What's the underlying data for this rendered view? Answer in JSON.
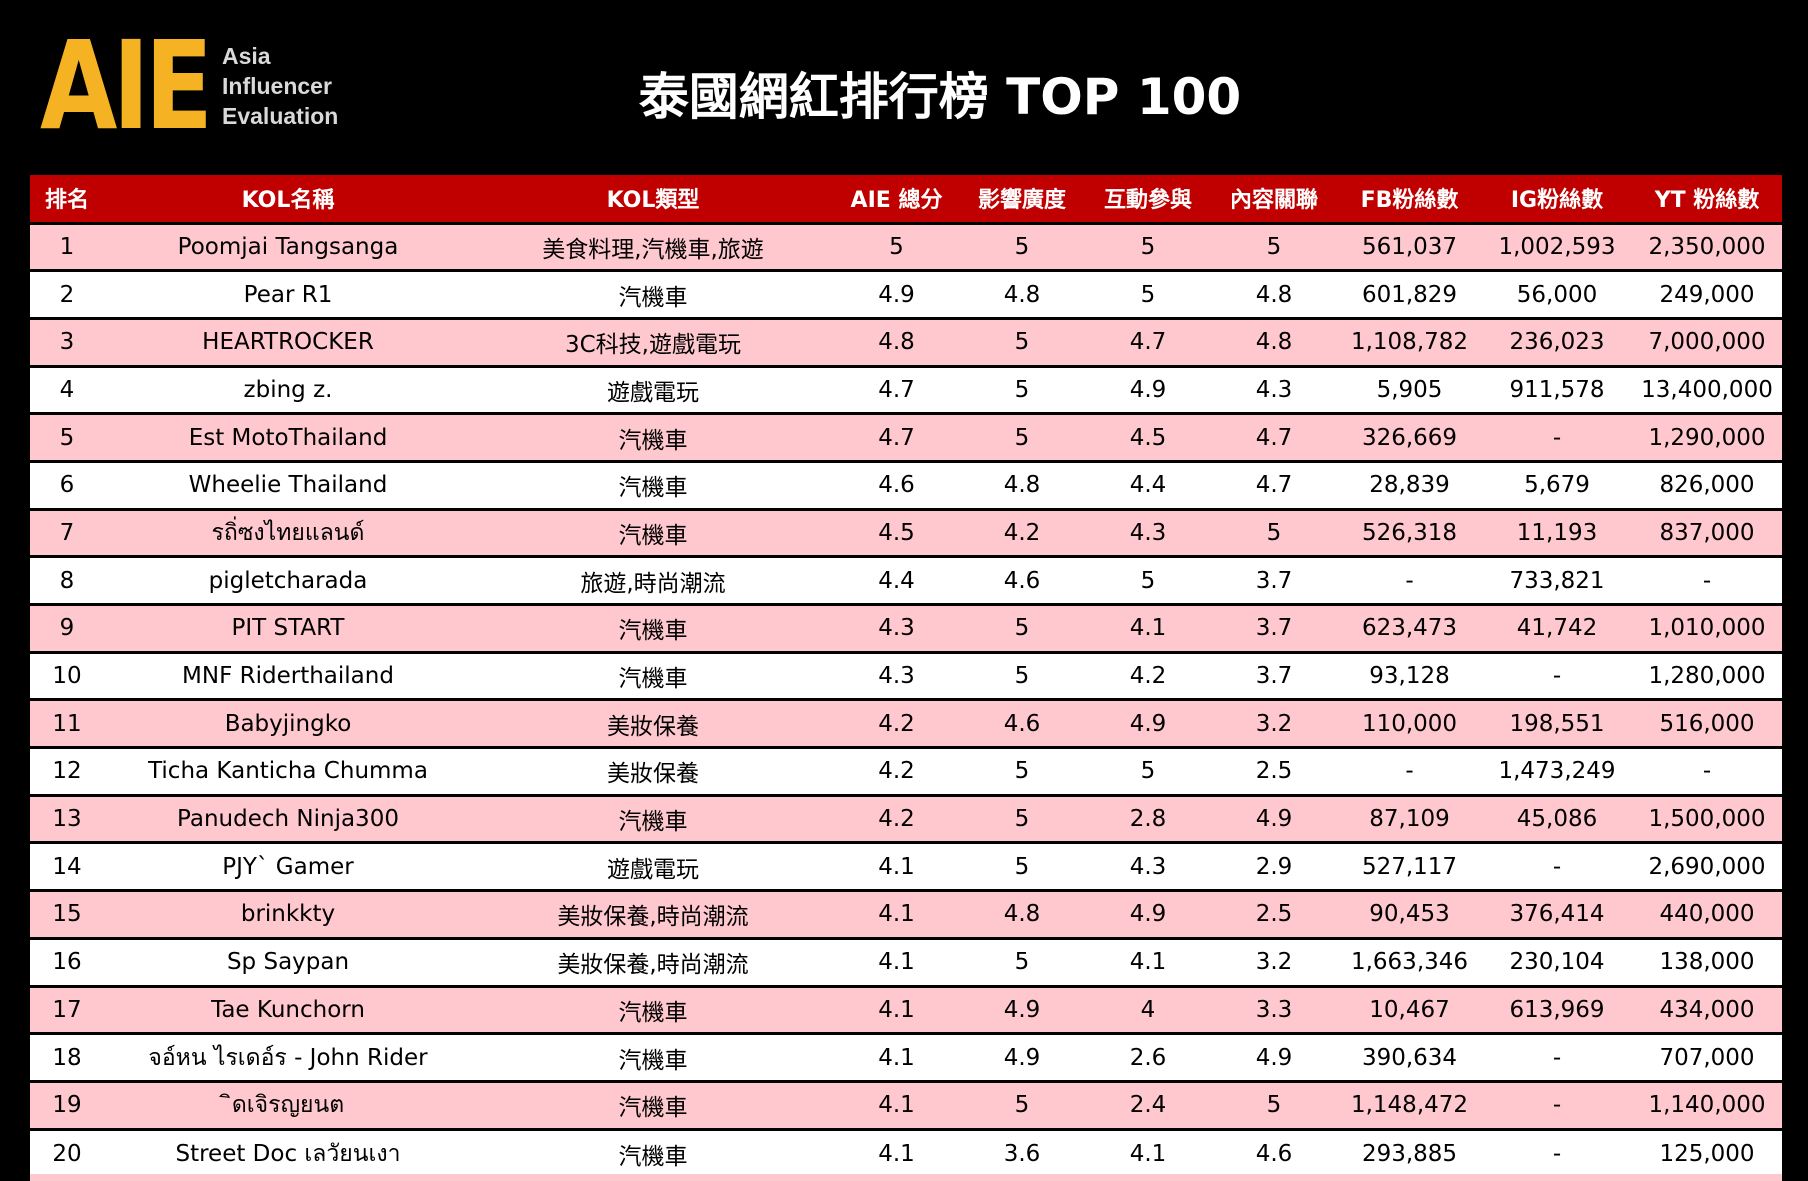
{
  "logo": {
    "mark": "AIE",
    "line1": "Asia",
    "line2": "Influencer",
    "line3": "Evaluation"
  },
  "title": "泰國網紅排行榜 TOP 100",
  "columns": [
    "排名",
    "KOL名稱",
    "KOL類型",
    "AIE 總分",
    "影響廣度",
    "互動參與",
    "內容關聯",
    "FB粉絲數",
    "IG粉絲數",
    "YT 粉絲數"
  ],
  "rows": [
    [
      "1",
      "Poomjai Tangsanga",
      "美食料理,汽機車,旅遊",
      "5",
      "5",
      "5",
      "5",
      "561,037",
      "1,002,593",
      "2,350,000"
    ],
    [
      "2",
      "Pear R1",
      "汽機車",
      "4.9",
      "4.8",
      "5",
      "4.8",
      "601,829",
      "56,000",
      "249,000"
    ],
    [
      "3",
      "HEARTROCKER",
      "3C科技,遊戲電玩",
      "4.8",
      "5",
      "4.7",
      "4.8",
      "1,108,782",
      "236,023",
      "7,000,000"
    ],
    [
      "4",
      "zbing z.",
      "遊戲電玩",
      "4.7",
      "5",
      "4.9",
      "4.3",
      "5,905",
      "911,578",
      "13,400,000"
    ],
    [
      "5",
      "Est MotoThailand",
      "汽機車",
      "4.7",
      "5",
      "4.5",
      "4.7",
      "326,669",
      "-",
      "1,290,000"
    ],
    [
      "6",
      "Wheelie Thailand",
      "汽機車",
      "4.6",
      "4.8",
      "4.4",
      "4.7",
      "28,839",
      "5,679",
      "826,000"
    ],
    [
      "7",
      "รถิ่ซงไทยแลนด์",
      "汽機車",
      "4.5",
      "4.2",
      "4.3",
      "5",
      "526,318",
      "11,193",
      "837,000"
    ],
    [
      "8",
      "pigletcharada",
      "旅遊,時尚潮流",
      "4.4",
      "4.6",
      "5",
      "3.7",
      "-",
      "733,821",
      "-"
    ],
    [
      "9",
      "PIT START",
      "汽機車",
      "4.3",
      "5",
      "4.1",
      "3.7",
      "623,473",
      "41,742",
      "1,010,000"
    ],
    [
      "10",
      "MNF Riderthailand",
      "汽機車",
      "4.3",
      "5",
      "4.2",
      "3.7",
      "93,128",
      "-",
      "1,280,000"
    ],
    [
      "11",
      "Babyjingko",
      "美妝保養",
      "4.2",
      "4.6",
      "4.9",
      "3.2",
      "110,000",
      "198,551",
      "516,000"
    ],
    [
      "12",
      "Ticha Kanticha Chumma",
      "美妝保養",
      "4.2",
      "5",
      "5",
      "2.5",
      "-",
      "1,473,249",
      "-"
    ],
    [
      "13",
      "Panudech Ninja300",
      "汽機車",
      "4.2",
      "5",
      "2.8",
      "4.9",
      "87,109",
      "45,086",
      "1,500,000"
    ],
    [
      "14",
      "PJY` Gamer",
      "遊戲電玩",
      "4.1",
      "5",
      "4.3",
      "2.9",
      "527,117",
      "-",
      "2,690,000"
    ],
    [
      "15",
      "brinkkty",
      "美妝保養,時尚潮流",
      "4.1",
      "4.8",
      "4.9",
      "2.5",
      "90,453",
      "376,414",
      "440,000"
    ],
    [
      "16",
      "Sp Saypan",
      "美妝保養,時尚潮流",
      "4.1",
      "5",
      "4.1",
      "3.2",
      "1,663,346",
      "230,104",
      "138,000"
    ],
    [
      "17",
      "Tae Kunchorn",
      "汽機車",
      "4.1",
      "4.9",
      "4",
      "3.3",
      "10,467",
      "613,969",
      "434,000"
    ],
    [
      "18",
      "จอ์หน ไรเดอ์ร - John Rider",
      "汽機車",
      "4.1",
      "4.9",
      "2.6",
      "4.9",
      "390,634",
      "-",
      "707,000"
    ],
    [
      "19",
      "ิดเจิรญยนต",
      "汽機車",
      "4.1",
      "5",
      "2.4",
      "5",
      "1,148,472",
      "-",
      "1,140,000"
    ],
    [
      "20",
      "Street Doc เลวัยนเงา",
      "汽機車",
      "4.1",
      "3.6",
      "4.1",
      "4.6",
      "293,885",
      "-",
      "125,000"
    ]
  ]
}
